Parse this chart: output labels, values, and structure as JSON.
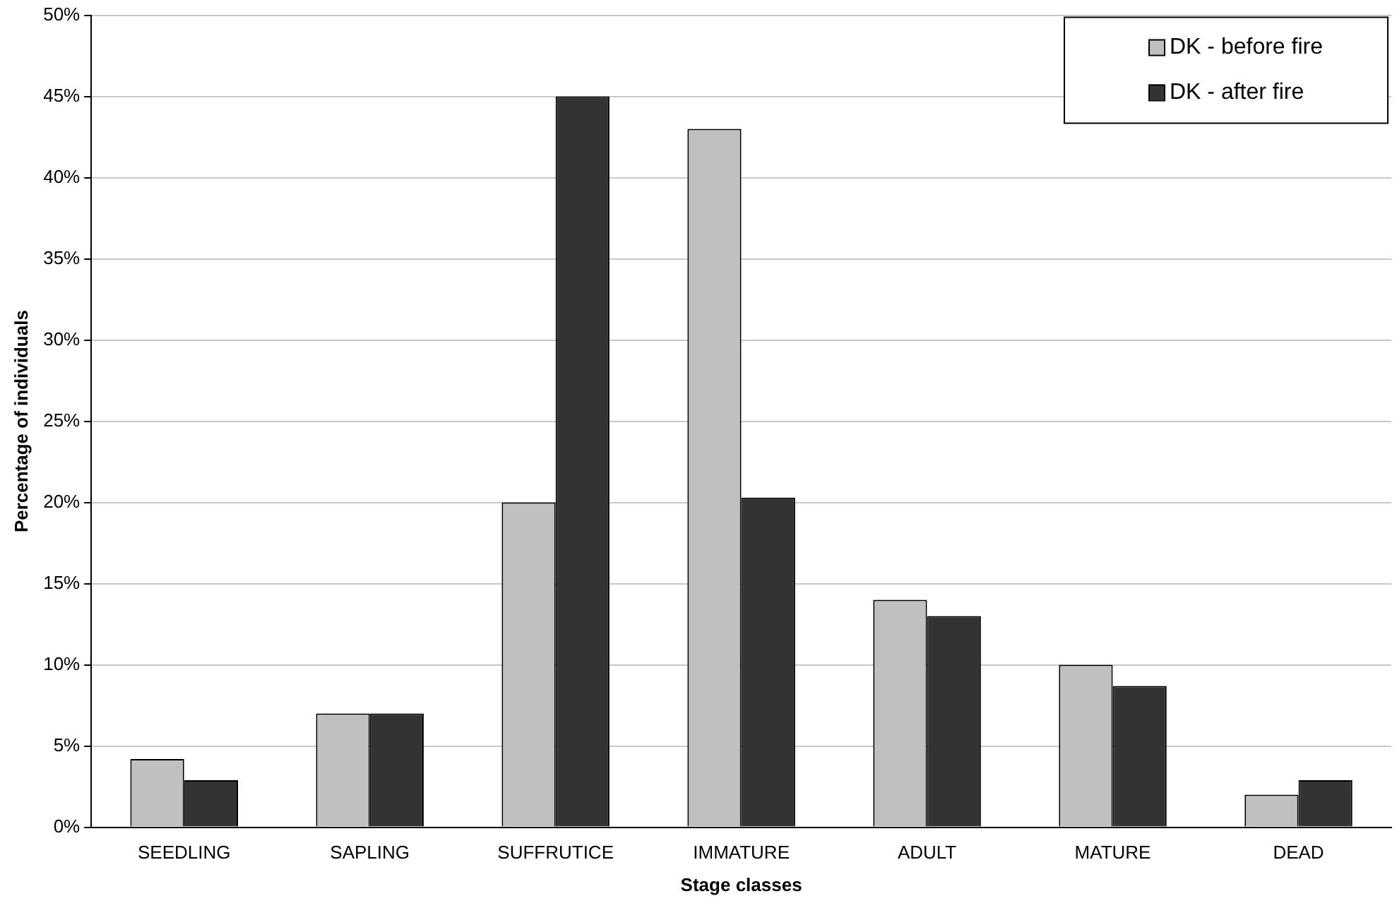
{
  "chart_data": {
    "type": "bar",
    "xlabel": "Stage classes",
    "ylabel": "Percentage of individuals",
    "categories": [
      "SEEDLING",
      "SAPLING",
      "SUFFRUTICE",
      "IMMATURE",
      "ADULT",
      "MATURE",
      "DEAD"
    ],
    "series": [
      {
        "name": "DK - before fire",
        "color": "#c0c0c0",
        "values": [
          4.2,
          7,
          20,
          43,
          14,
          10,
          2
        ]
      },
      {
        "name": "DK - after fire",
        "color": "#333333",
        "values": [
          2.9,
          7,
          45,
          20.3,
          13,
          8.7,
          2.9
        ]
      }
    ],
    "ylim": [
      0,
      50
    ],
    "yticks": [
      {
        "value": 0,
        "label": "0%"
      },
      {
        "value": 5,
        "label": "5%"
      },
      {
        "value": 10,
        "label": "10%"
      },
      {
        "value": 15,
        "label": "15%"
      },
      {
        "value": 20,
        "label": "20%"
      },
      {
        "value": 25,
        "label": "25%"
      },
      {
        "value": 30,
        "label": "30%"
      },
      {
        "value": 35,
        "label": "35%"
      },
      {
        "value": 40,
        "label": "40%"
      },
      {
        "value": 45,
        "label": "45%"
      },
      {
        "value": 50,
        "label": "50%"
      }
    ],
    "grid": "y",
    "legend": "top right"
  }
}
